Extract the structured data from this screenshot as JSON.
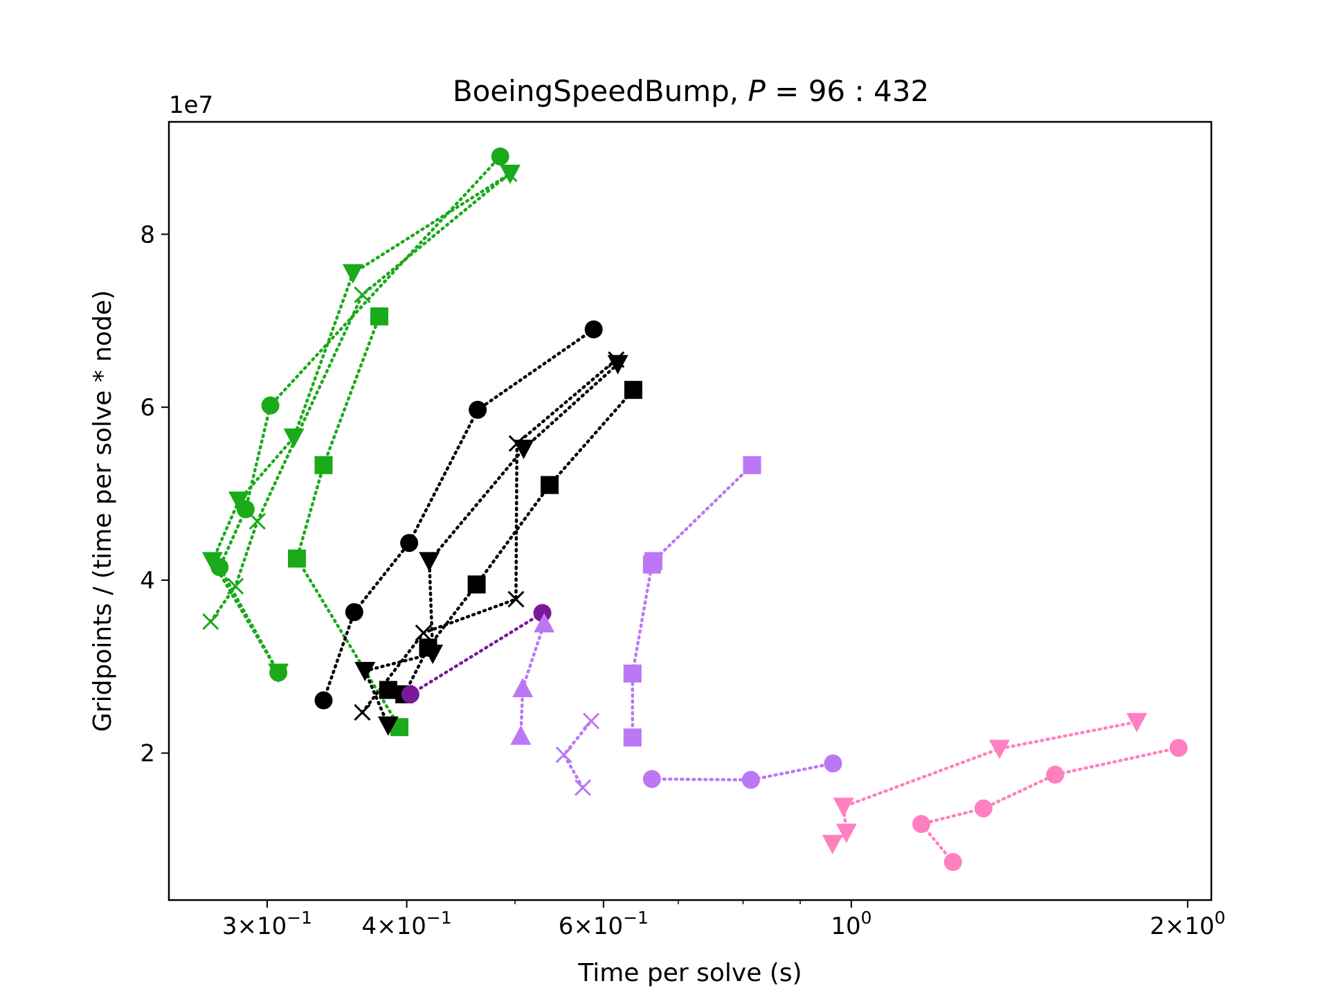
{
  "chart_data": {
    "type": "scatter",
    "title": "BoeingSpeedBump, P = 96 : 432",
    "title_text": "BoeingSpeedBump, ",
    "title_math_var": "P",
    "title_math_rest": " = 96 : 432",
    "xlabel": "Time per solve (s)",
    "ylabel": "Gridpoints / (time per solve * node)",
    "y_multiplier_label": "1e7",
    "x_scale": "log",
    "xlim": [
      0.245,
      2.1
    ],
    "ylim": [
      3000000.0,
      93000000.0
    ],
    "grid": false,
    "x_ticks": [
      {
        "value": 0.3,
        "mantissa": "3",
        "exp": "−1"
      },
      {
        "value": 0.4,
        "mantissa": "4",
        "exp": "−1"
      },
      {
        "value": 0.6,
        "mantissa": "6",
        "exp": "−1"
      },
      {
        "value": 1.0,
        "mantissa": "",
        "exp": "0"
      },
      {
        "value": 2.0,
        "mantissa": "2",
        "exp": "0"
      }
    ],
    "x_minor_ticks": [
      0.5,
      0.7,
      0.8,
      0.9
    ],
    "y_ticks": [
      {
        "value": 20000000.0,
        "label": "2"
      },
      {
        "value": 40000000.0,
        "label": "4"
      },
      {
        "value": 60000000.0,
        "label": "6"
      },
      {
        "value": 80000000.0,
        "label": "8"
      }
    ],
    "series": [
      {
        "color": "#1aaa1a",
        "marker": "circle",
        "x": [
          0.307,
          0.272,
          0.287,
          0.302,
          0.485
        ],
        "y": [
          29300000.0,
          41500000.0,
          48200000.0,
          60200000.0,
          89000000.0
        ]
      },
      {
        "color": "#1aaa1a",
        "marker": "triangle-down",
        "x": [
          0.307,
          0.268,
          0.283,
          0.317,
          0.358,
          0.495
        ],
        "y": [
          29300000.0,
          42200000.0,
          49200000.0,
          56500000.0,
          75500000.0,
          87000000.0
        ]
      },
      {
        "color": "#1aaa1a",
        "marker": "x",
        "x": [
          0.267,
          0.281,
          0.294,
          0.365,
          0.494
        ],
        "y": [
          35200000.0,
          39300000.0,
          46800000.0,
          73000000.0,
          87000000.0
        ]
      },
      {
        "color": "#1aaa1a",
        "marker": "square",
        "x": [
          0.394,
          0.319,
          0.337,
          0.378
        ],
        "y": [
          23000000.0,
          42500000.0,
          53300000.0,
          70500000.0
        ]
      },
      {
        "color": "#000000",
        "marker": "circle",
        "x": [
          0.337,
          0.359,
          0.402,
          0.463,
          0.588
        ],
        "y": [
          26100000.0,
          36300000.0,
          44300000.0,
          59700000.0,
          69000000.0
        ]
      },
      {
        "color": "#000000",
        "marker": "triangle-down",
        "x": [
          0.385,
          0.367,
          0.422,
          0.419,
          0.509,
          0.618
        ],
        "y": [
          23200000.0,
          29500000.0,
          31500000.0,
          42200000.0,
          55200000.0,
          65000000.0
        ]
      },
      {
        "color": "#000000",
        "marker": "x",
        "x": [
          0.365,
          0.414,
          0.501,
          0.502,
          0.616
        ],
        "y": [
          24700000.0,
          33900000.0,
          37800000.0,
          55800000.0,
          65500000.0
        ]
      },
      {
        "color": "#000000",
        "marker": "square",
        "x": [
          0.385,
          0.398,
          0.418,
          0.462,
          0.537,
          0.638
        ],
        "y": [
          27300000.0,
          26800000.0,
          32200000.0,
          39500000.0,
          51000000.0,
          62000000.0
        ]
      },
      {
        "color": "#7a1a9a",
        "marker": "circle",
        "x": [
          0.403,
          0.529
        ],
        "y": [
          26800000.0,
          36200000.0
        ]
      },
      {
        "color": "#bb77f5",
        "marker": "triangle-up",
        "x": [
          0.506,
          0.508,
          0.531
        ],
        "y": [
          22000000.0,
          27500000.0,
          35000000.0
        ]
      },
      {
        "color": "#bb77f5",
        "marker": "x",
        "x": [
          0.575,
          0.553,
          0.585
        ],
        "y": [
          16000000.0,
          19800000.0,
          23700000.0
        ]
      },
      {
        "color": "#bb77f5",
        "marker": "square",
        "x": [
          0.637,
          0.637,
          0.663,
          0.665,
          0.815
        ],
        "y": [
          21800000.0,
          29200000.0,
          41800000.0,
          42200000.0,
          53300000.0
        ]
      },
      {
        "color": "#bb77f5",
        "marker": "circle",
        "x": [
          0.663,
          0.813,
          0.963
        ],
        "y": [
          17000000.0,
          16900000.0,
          18800000.0
        ]
      },
      {
        "color": "#ff80c0",
        "marker": "circle",
        "x": [
          1.233,
          1.155,
          1.313,
          1.522,
          1.963
        ],
        "y": [
          7400000.0,
          11800000.0,
          13600000.0,
          17500000.0,
          20600000.0
        ]
      },
      {
        "color": "#ff80c0",
        "marker": "triangle-down",
        "x": [
          0.962,
          0.99,
          0.984,
          1.357,
          1.801
        ],
        "y": [
          9500000.0,
          10800000.0,
          13800000.0,
          20500000.0,
          23600000.0
        ]
      }
    ]
  }
}
